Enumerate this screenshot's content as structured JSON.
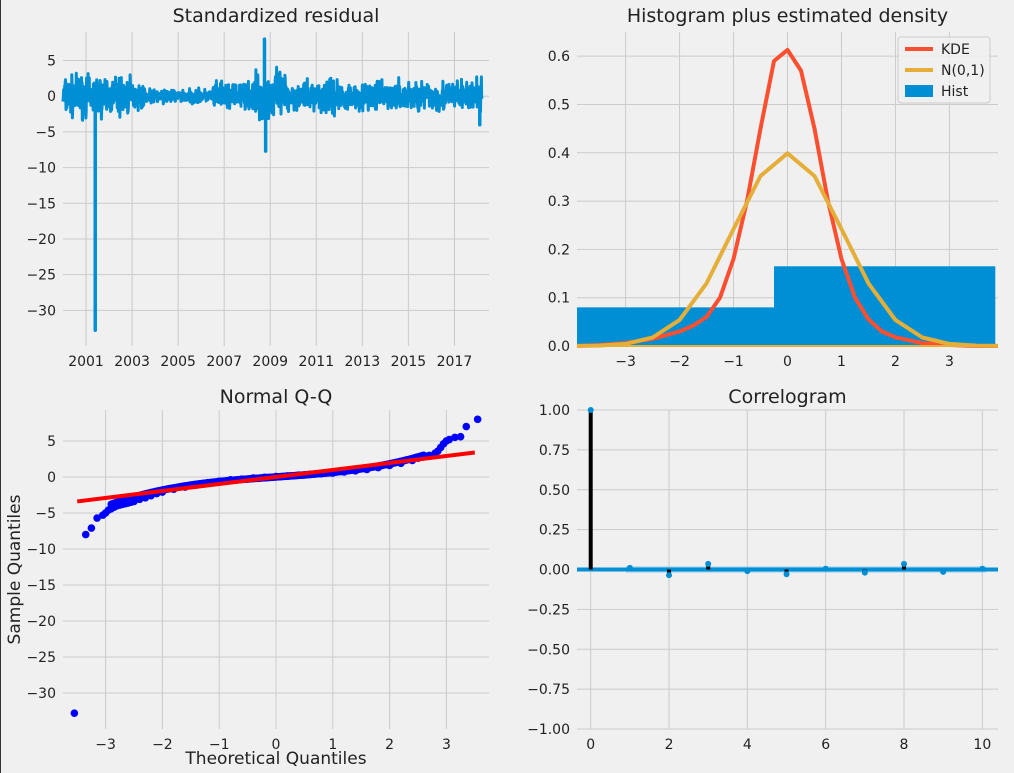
{
  "colors": {
    "figure_bg": "#f0f0f0",
    "grid": "#cbcbcb",
    "text": "#222222",
    "resid_line": "#008fd5",
    "kde": "#fc4f30",
    "normal": "#e5ae38",
    "hist": "#008fd5",
    "qq_points": "#0000ff",
    "qq_line": "#ff0000",
    "acf_stem": "#000000",
    "acf_band": "#8ecbe9"
  },
  "chart_data": [
    {
      "type": "line",
      "title": "Standardized residual",
      "xlabel": "",
      "ylabel": "",
      "xlim": [
        2000.0,
        2018.5
      ],
      "ylim": [
        -35,
        9
      ],
      "x_ticks": [
        2001,
        2003,
        2005,
        2007,
        2009,
        2011,
        2013,
        2015,
        2017
      ],
      "y_ticks": [
        5,
        0,
        -5,
        -10,
        -15,
        -20,
        -25,
        -30
      ],
      "notable_points": [
        {
          "x": 2001.4,
          "y": -32.8
        },
        {
          "x": 2008.75,
          "y": 8.0
        },
        {
          "x": 2008.8,
          "y": -7.7
        },
        {
          "x": 2018.1,
          "y": -4.0
        }
      ]
    },
    {
      "type": "area",
      "title": "Histogram plus estimated density",
      "xlim": [
        -3.9,
        3.9
      ],
      "ylim": [
        0,
        0.65
      ],
      "x_ticks": [
        -3,
        -2,
        -1,
        0,
        1,
        2,
        3
      ],
      "y_ticks": [
        0.0,
        0.1,
        0.2,
        0.3,
        0.4,
        0.5,
        0.6
      ],
      "legend": {
        "placement": "top-right",
        "entries": [
          "KDE",
          "N(0,1)",
          "Hist"
        ]
      },
      "hist_bins": [
        {
          "x0": -3.9,
          "x1": -0.25,
          "value": 0.08
        },
        {
          "x0": -0.25,
          "x1": 3.85,
          "value": 0.165
        }
      ],
      "series": [
        {
          "name": "KDE",
          "x": [
            -3.9,
            -3.5,
            -3.0,
            -2.5,
            -2.0,
            -1.75,
            -1.5,
            -1.25,
            -1.0,
            -0.75,
            -0.5,
            -0.25,
            0.0,
            0.25,
            0.5,
            0.75,
            1.0,
            1.25,
            1.5,
            1.75,
            2.0,
            2.5,
            3.0,
            3.5,
            3.9
          ],
          "y": [
            0.0,
            0.002,
            0.006,
            0.015,
            0.03,
            0.042,
            0.06,
            0.1,
            0.18,
            0.3,
            0.45,
            0.59,
            0.613,
            0.57,
            0.45,
            0.3,
            0.18,
            0.1,
            0.055,
            0.03,
            0.018,
            0.006,
            0.002,
            0.0,
            0.0
          ]
        },
        {
          "name": "N(0,1)",
          "x": [
            -3.9,
            -3.5,
            -3.0,
            -2.5,
            -2.0,
            -1.5,
            -1.0,
            -0.5,
            0.0,
            0.5,
            1.0,
            1.5,
            2.0,
            2.5,
            3.0,
            3.5,
            3.9
          ],
          "y": [
            0.0002,
            0.0009,
            0.0044,
            0.0175,
            0.054,
            0.1295,
            0.242,
            0.352,
            0.399,
            0.352,
            0.242,
            0.1295,
            0.054,
            0.0175,
            0.0044,
            0.0009,
            0.0002
          ]
        }
      ]
    },
    {
      "type": "scatter",
      "title": "Normal Q-Q",
      "xlabel": "Theoretical Quantiles",
      "ylabel": "Sample Quantiles",
      "xlim": [
        -3.75,
        3.75
      ],
      "ylim": [
        -35,
        9.3
      ],
      "x_ticks": [
        -3,
        -2,
        -1,
        0,
        1,
        2,
        3
      ],
      "y_ticks": [
        5,
        0,
        -5,
        -10,
        -15,
        -20,
        -25,
        -30
      ],
      "reference_line": {
        "x": [
          -3.5,
          3.5
        ],
        "y": [
          -3.4,
          3.4
        ]
      },
      "points": {
        "x": [
          -3.55,
          -3.35,
          -3.25,
          -3.15,
          -3.05,
          -3.0,
          -2.95,
          -2.9,
          -2.85,
          -2.8,
          -2.75,
          -2.7,
          -2.65,
          -2.6,
          -2.55,
          -2.5,
          -2.4,
          -2.3,
          -2.2,
          -2.1,
          -2.0,
          -1.8,
          -1.6,
          -1.4,
          -1.2,
          -1.0,
          -0.8,
          -0.6,
          -0.4,
          -0.2,
          0.0,
          0.2,
          0.4,
          0.6,
          0.8,
          1.0,
          1.2,
          1.4,
          1.6,
          1.8,
          2.0,
          2.2,
          2.4,
          2.5,
          2.6,
          2.7,
          2.8,
          2.85,
          2.9,
          2.95,
          3.0,
          3.05,
          3.15,
          3.25,
          3.35,
          3.55
        ],
        "y": [
          -32.8,
          -8.0,
          -7.1,
          -5.7,
          -5.3,
          -5.0,
          -4.6,
          -4.4,
          -4.2,
          -4.0,
          -3.9,
          -3.8,
          -3.7,
          -3.6,
          -3.5,
          -3.4,
          -3.1,
          -2.9,
          -2.6,
          -2.3,
          -2.1,
          -1.7,
          -1.4,
          -1.1,
          -0.8,
          -0.6,
          -0.4,
          -0.3,
          -0.15,
          -0.05,
          0.05,
          0.15,
          0.25,
          0.35,
          0.45,
          0.55,
          0.7,
          0.85,
          1.05,
          1.3,
          1.6,
          1.9,
          2.3,
          2.6,
          2.8,
          3.0,
          3.3,
          3.6,
          4.1,
          4.6,
          5.0,
          5.2,
          5.5,
          5.6,
          7.0,
          8.0
        ]
      }
    },
    {
      "type": "bar",
      "title": "Correlogram",
      "xlim": [
        -0.35,
        10.4
      ],
      "ylim": [
        -1.0,
        1.0
      ],
      "x_ticks": [
        0,
        2,
        4,
        6,
        8,
        10
      ],
      "y_ticks": [
        1.0,
        0.75,
        0.5,
        0.25,
        0.0,
        -0.25,
        -0.5,
        -0.75,
        -1.0
      ],
      "confidence_band": [
        -0.02,
        0.02
      ],
      "lags": [
        0,
        1,
        2,
        3,
        4,
        5,
        6,
        7,
        8,
        9,
        10
      ],
      "values": [
        1.0,
        0.01,
        -0.035,
        0.035,
        -0.01,
        -0.03,
        0.005,
        -0.02,
        0.035,
        -0.015,
        0.005
      ]
    }
  ]
}
